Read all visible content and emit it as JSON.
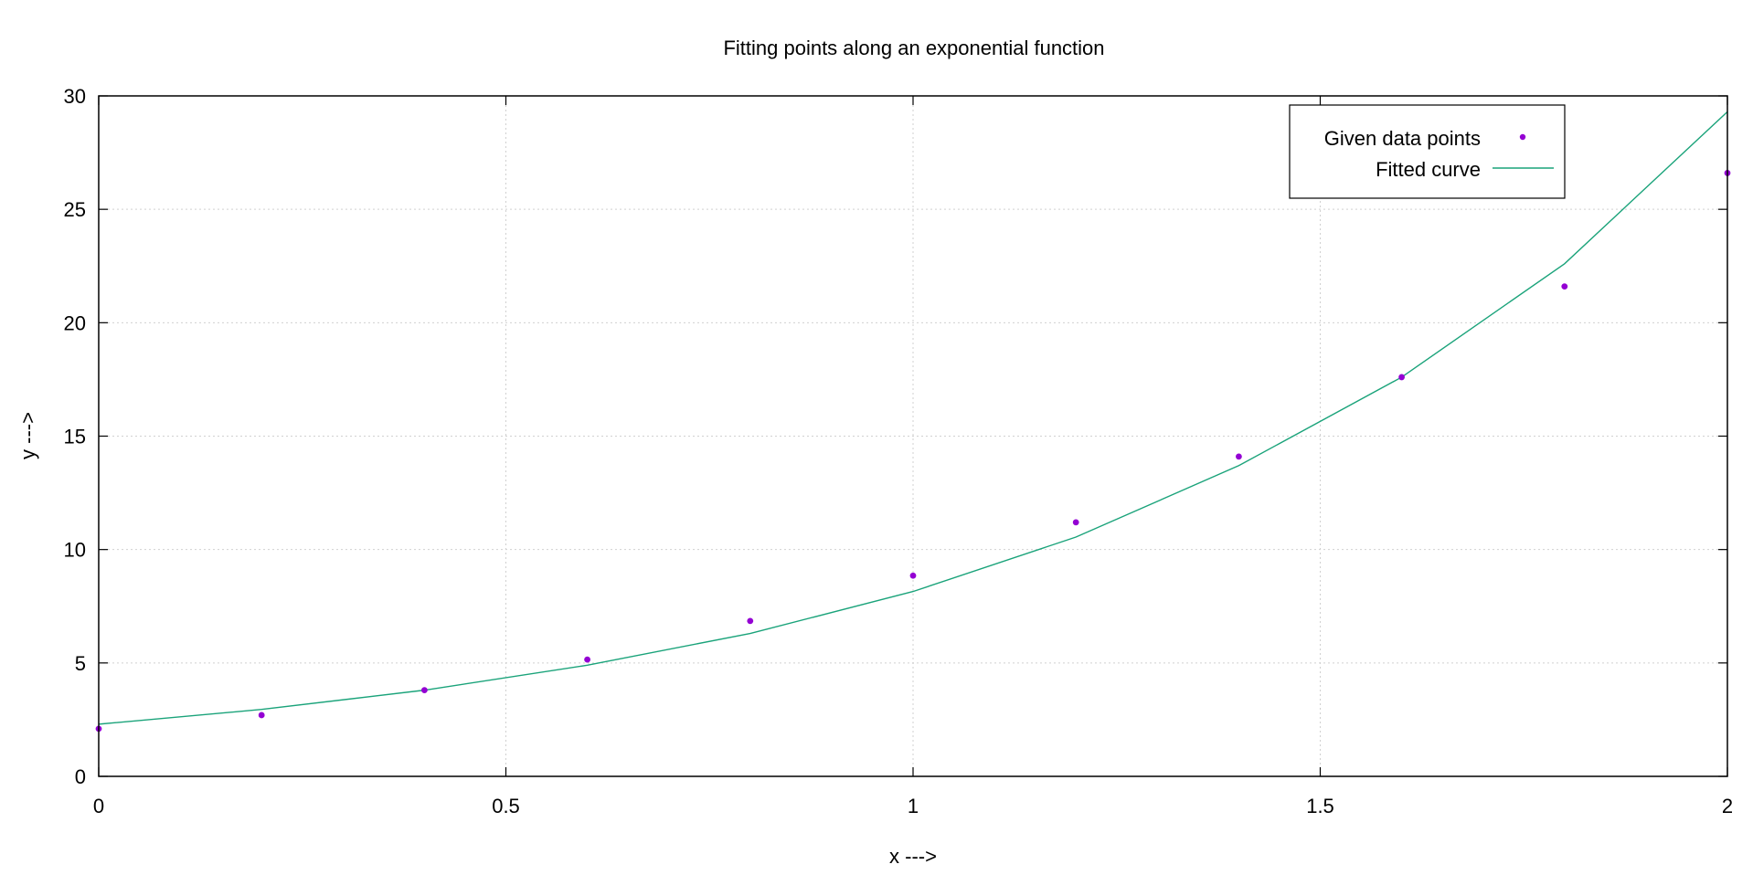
{
  "chart_data": {
    "type": "scatter",
    "title": "Fitting points along an exponential function",
    "xlabel": "x --->",
    "ylabel": "y --->",
    "xlim": [
      0,
      2
    ],
    "ylim": [
      0,
      30
    ],
    "x_ticks": [
      0,
      0.5,
      1,
      1.5,
      2
    ],
    "x_tick_labels": [
      "0",
      "0.5",
      "1",
      "1.5",
      "2"
    ],
    "y_ticks": [
      0,
      5,
      10,
      15,
      20,
      25,
      30
    ],
    "y_tick_labels": [
      "0",
      "5",
      "10",
      "15",
      "20",
      "25",
      "30"
    ],
    "grid": true,
    "legend_position": "top-right",
    "series": [
      {
        "name": "Given data points",
        "kind": "points",
        "color": "#9400d3",
        "x": [
          0,
          0.2,
          0.4,
          0.6,
          0.8,
          1.0,
          1.2,
          1.4,
          1.6,
          1.8,
          2.0
        ],
        "y": [
          2.1,
          2.7,
          3.8,
          5.15,
          6.85,
          8.85,
          11.2,
          14.1,
          17.6,
          21.6,
          26.6
        ]
      },
      {
        "name": "Fitted curve",
        "kind": "line",
        "color": "#1aa37a",
        "x": [
          0,
          0.2,
          0.4,
          0.6,
          0.8,
          1.0,
          1.2,
          1.4,
          1.6,
          1.8,
          2.0
        ],
        "y": [
          2.3,
          2.95,
          3.8,
          4.9,
          6.3,
          8.15,
          10.55,
          13.7,
          17.6,
          22.6,
          29.3
        ]
      }
    ]
  }
}
